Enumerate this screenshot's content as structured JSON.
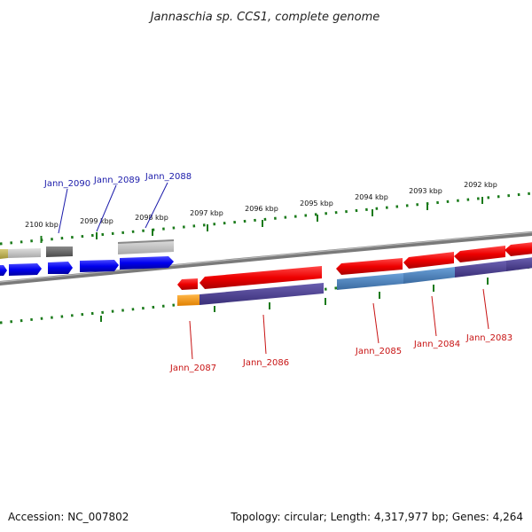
{
  "title": "Jannaschia sp. CCS1, complete genome",
  "footer": {
    "accession": "Accession: NC_007802",
    "summary": "Topology: circular; Length: 4,317,977 bp; Genes: 4,264"
  },
  "ticks": [
    "2100 kbp",
    "2099 kbp",
    "2098 kbp",
    "2097 kbp",
    "2096 kbp",
    "2095 kbp",
    "2094 kbp",
    "2093 kbp",
    "2092 kbp"
  ],
  "gene_labels": [
    {
      "text": "Jann_2090",
      "color": "#1a1aaa"
    },
    {
      "text": "Jann_2089",
      "color": "#1a1aaa"
    },
    {
      "text": "Jann_2088",
      "color": "#1a1aaa"
    },
    {
      "text": "Jann_2087",
      "color": "#c81414"
    },
    {
      "text": "Jann_2086",
      "color": "#c81414"
    },
    {
      "text": "Jann_2085",
      "color": "#c81414"
    },
    {
      "text": "Jann_2084",
      "color": "#c81414"
    },
    {
      "text": "Jann_2083",
      "color": "#c81414"
    }
  ],
  "colors": {
    "forward_cds": "#0000ee",
    "reverse_cds": "#ee0000",
    "reverse_function": "#4a3d8f",
    "reverse_function_blue": "#4a82c0",
    "rna": "#ff9900",
    "other_gray": "#b8b8b8",
    "dark_gray": "#666666",
    "olive": "#b5a84a",
    "backbone": "#808080",
    "tick_green": "#1a7a1a"
  }
}
